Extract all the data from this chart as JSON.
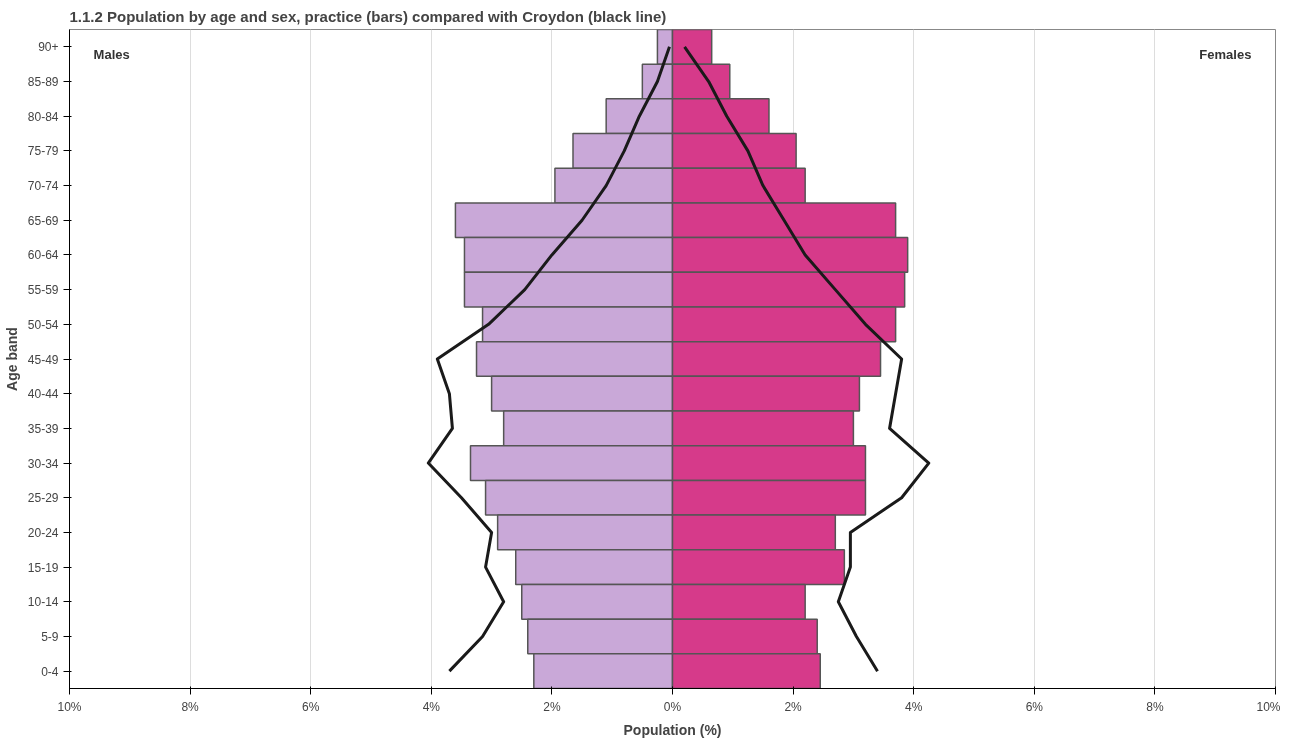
{
  "chart_data": {
    "type": "bar",
    "orientation": "horizontal",
    "stacked": true,
    "annotations": [
      "Males",
      "Females"
    ],
    "title": "1.1.2 Population by age and sex, practice (bars) compared with Croydon (black line)",
    "xlabel": "Population (%)",
    "ylabel": "Age band",
    "categories": [
      "90+",
      "85-89",
      "80-84",
      "75-79",
      "70-74",
      "65-69",
      "60-64",
      "55-59",
      "50-54",
      "45-49",
      "40-44",
      "35-39",
      "30-34",
      "25-29",
      "20-24",
      "15-19",
      "10-14",
      "5-9",
      "0-4"
    ],
    "series": [
      {
        "color": "#c9a8d8",
        "values": [
          -0.25,
          -0.5,
          -1.1,
          -1.65,
          -1.95,
          -3.6,
          -3.45,
          -3.45,
          -3.15,
          -3.25,
          -3.0,
          -2.8,
          -3.35,
          -3.1,
          -2.9,
          -2.6,
          -2.5,
          -2.4,
          -2.3
        ]
      },
      {
        "color": "#d63a8a",
        "values": [
          0.65,
          0.95,
          1.6,
          2.05,
          2.2,
          3.7,
          3.9,
          3.85,
          3.7,
          3.45,
          3.1,
          3.0,
          3.2,
          3.2,
          2.7,
          2.85,
          2.2,
          2.4,
          2.45
        ]
      },
      {
        "type": "line",
        "color": "#1a1a1a",
        "values": [
          -0.05,
          -0.25,
          -0.55,
          -0.8,
          -1.1,
          -1.5,
          -2.0,
          -2.45,
          -3.05,
          -3.9,
          -3.7,
          -3.65,
          -4.05,
          -3.5,
          -3.0,
          -3.1,
          -2.8,
          -3.15,
          -3.7
        ]
      },
      {
        "type": "line",
        "color": "#1a1a1a",
        "values": [
          0.2,
          0.6,
          0.9,
          1.25,
          1.5,
          1.85,
          2.2,
          2.7,
          3.2,
          3.8,
          3.7,
          3.6,
          4.25,
          3.8,
          2.95,
          2.95,
          2.75,
          3.05,
          3.4
        ]
      }
    ],
    "xlim": [
      -10,
      10
    ],
    "xticks": [
      {
        "value": -10,
        "label": "10%"
      },
      {
        "value": -8,
        "label": "8%"
      },
      {
        "value": -6,
        "label": "6%"
      },
      {
        "value": -4,
        "label": "4%"
      },
      {
        "value": -2,
        "label": "2%"
      },
      {
        "value": 0,
        "label": "0%"
      },
      {
        "value": 2,
        "label": "2%"
      },
      {
        "value": 4,
        "label": "4%"
      },
      {
        "value": 6,
        "label": "6%"
      },
      {
        "value": 8,
        "label": "8%"
      },
      {
        "value": 10,
        "label": "10%"
      }
    ],
    "grid": "x",
    "line_style": "solid",
    "marker": "none"
  }
}
